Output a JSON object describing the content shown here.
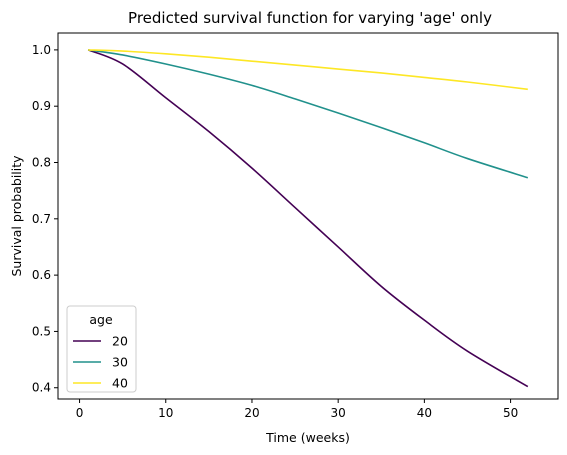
{
  "chart_data": {
    "type": "line",
    "title": "Predicted survival function for varying 'age' only",
    "xlabel": "Time (weeks)",
    "ylabel": "Survival probability",
    "xlim": [
      -2.5,
      55.5
    ],
    "ylim": [
      0.38,
      1.03
    ],
    "xticks": [
      0,
      10,
      20,
      30,
      40,
      50
    ],
    "yticks": [
      0.4,
      0.5,
      0.6,
      0.7,
      0.8,
      0.9,
      1.0
    ],
    "xtick_labels": [
      "0",
      "10",
      "20",
      "30",
      "40",
      "50"
    ],
    "ytick_labels": [
      "0.4",
      "0.5",
      "0.6",
      "0.7",
      "0.8",
      "0.9",
      "1.0"
    ],
    "grid": false,
    "legend": {
      "title": "age",
      "placement": "lower-left"
    },
    "x": [
      1,
      5,
      10,
      15,
      20,
      25,
      30,
      35,
      40,
      45,
      52
    ],
    "series": [
      {
        "name": "20",
        "color": "#440154",
        "values": [
          1.0,
          0.975,
          0.915,
          0.855,
          0.79,
          0.72,
          0.65,
          0.58,
          0.52,
          0.465,
          0.402
        ]
      },
      {
        "name": "30",
        "color": "#21918c",
        "values": [
          1.0,
          0.991,
          0.975,
          0.957,
          0.937,
          0.913,
          0.888,
          0.862,
          0.835,
          0.807,
          0.773
        ]
      },
      {
        "name": "40",
        "color": "#fde725",
        "values": [
          1.0,
          0.998,
          0.993,
          0.987,
          0.98,
          0.973,
          0.966,
          0.959,
          0.951,
          0.943,
          0.93
        ]
      }
    ]
  }
}
